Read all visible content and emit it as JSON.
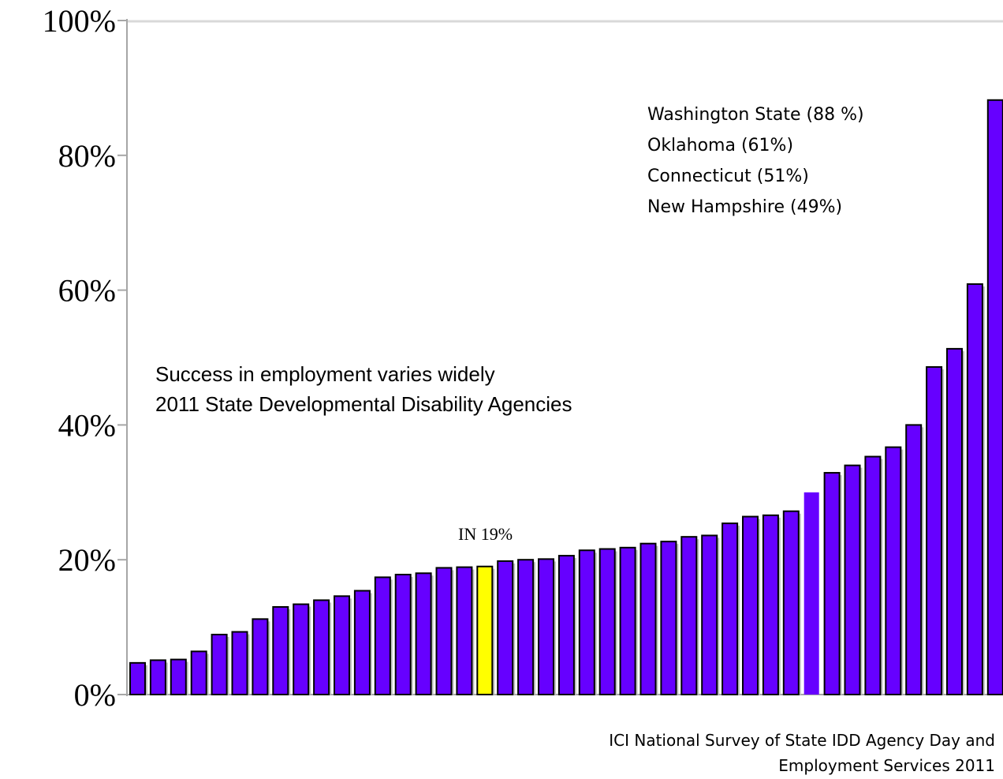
{
  "chart_data": {
    "type": "bar",
    "title": "",
    "xlabel": "",
    "ylabel": "",
    "ylim": [
      0,
      100
    ],
    "y_ticks": [
      "0%",
      "20%",
      "40%",
      "60%",
      "80%",
      "100%"
    ],
    "y_tick_values": [
      0,
      20,
      40,
      60,
      80,
      100
    ],
    "grid": false,
    "bar_color": "#6600ff",
    "highlight_color": "#ffff00",
    "highlight_index": 17,
    "no_border_index": 33,
    "values": [
      4.7,
      5.1,
      5.2,
      6.4,
      8.9,
      9.3,
      11.2,
      13.0,
      13.4,
      14.0,
      14.6,
      15.4,
      17.4,
      17.8,
      18.0,
      18.8,
      18.9,
      19.0,
      19.8,
      20.0,
      20.1,
      20.6,
      21.4,
      21.6,
      21.8,
      22.4,
      22.7,
      23.4,
      23.6,
      25.4,
      26.4,
      26.6,
      27.2,
      30.0,
      32.9,
      34.0,
      35.3,
      36.7,
      40.0,
      48.6,
      51.3,
      60.9,
      88.2
    ]
  },
  "annotations": {
    "highlight_label": "IN 19%",
    "title_line1": "Success in employment varies widely",
    "title_line2": "2011 State Developmental Disability Agencies",
    "top_states": [
      "Washington State (88 %)",
      "Oklahoma (61%)",
      "Connecticut (51%)",
      "New Hampshire (49%)"
    ],
    "source_line1": "ICI National Survey of State IDD Agency Day and",
    "source_line2": "Employment Services 2011"
  }
}
